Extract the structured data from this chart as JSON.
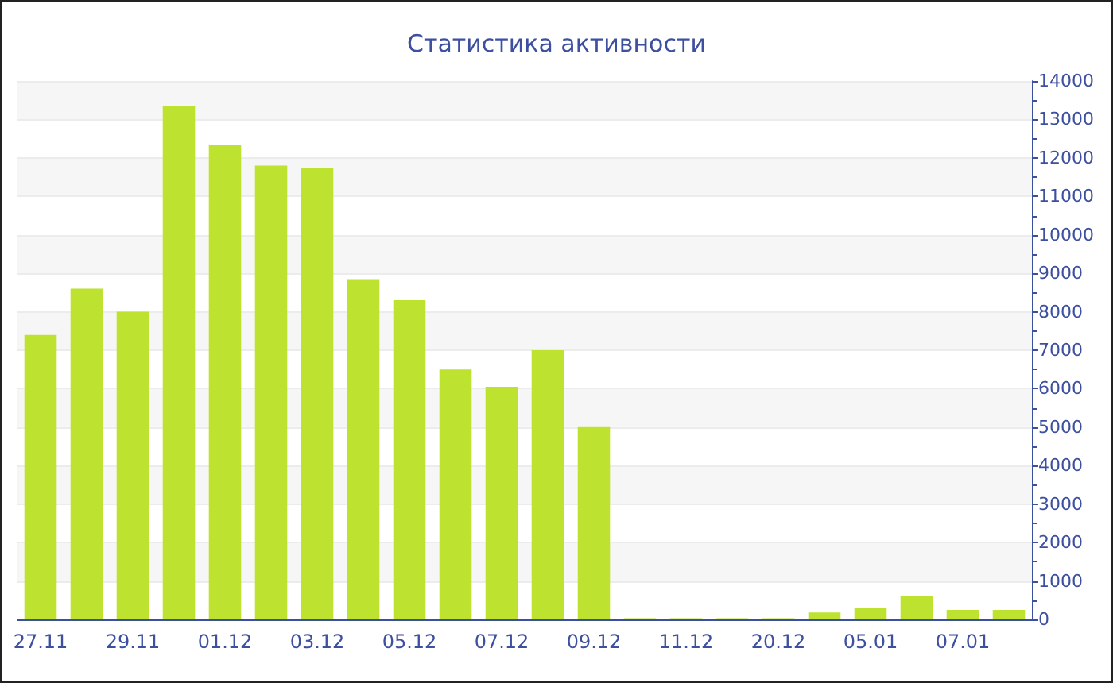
{
  "chart_data": {
    "type": "bar",
    "title": "Статистика активности",
    "categories": [
      "27.11",
      null,
      "29.11",
      null,
      "01.12",
      null,
      "03.12",
      null,
      "05.12",
      null,
      "07.12",
      null,
      "09.12",
      null,
      "11.12",
      null,
      "20.12",
      null,
      "05.01",
      null,
      "07.01",
      null
    ],
    "values": [
      7400,
      8600,
      8000,
      13350,
      12350,
      11800,
      11750,
      8850,
      8300,
      6500,
      6050,
      7000,
      5000,
      30,
      30,
      30,
      30,
      180,
      300,
      600,
      250,
      250
    ],
    "color": "#bde22f",
    "ylim": [
      0,
      14000
    ],
    "yticks": [
      0,
      1000,
      2000,
      3000,
      4000,
      5000,
      6000,
      7000,
      8000,
      9000,
      10000,
      11000,
      12000,
      13000,
      14000
    ],
    "grid": "y"
  }
}
